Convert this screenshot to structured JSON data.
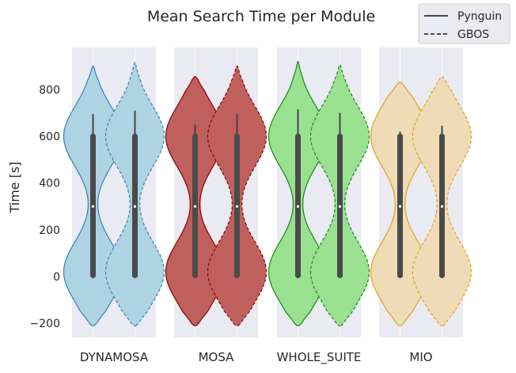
{
  "chart_data": {
    "type": "violin",
    "title": "Mean Search Time per Module",
    "xlabel": "",
    "ylabel": "Time [s]",
    "ylim": [
      -260,
      980
    ],
    "yticks": [
      -200,
      0,
      200,
      400,
      600,
      800
    ],
    "yticklabels": [
      "−200",
      "0",
      "200",
      "400",
      "600",
      "800"
    ],
    "grid": true,
    "legend_position": "top-right",
    "legend": [
      {
        "label": "Pynguin",
        "linestyle": "solid"
      },
      {
        "label": "GBOS",
        "linestyle": "dashed"
      }
    ],
    "panels": [
      {
        "category": "DYNAMOSA",
        "fill": "#aed3e2",
        "edge": "#3a7fb3",
        "violins": [
          {
            "series": "Pynguin",
            "min": -210,
            "max": 900,
            "q1": 5,
            "median": 300,
            "q3": 600,
            "whisker_high": 695
          },
          {
            "series": "GBOS",
            "min": -210,
            "max": 915,
            "q1": 5,
            "median": 300,
            "q3": 600,
            "whisker_high": 710
          }
        ]
      },
      {
        "category": "MOSA",
        "fill": "#c0605d",
        "edge": "#8b0000",
        "violins": [
          {
            "series": "Pynguin",
            "min": -210,
            "max": 855,
            "q1": 5,
            "median": 300,
            "q3": 600,
            "whisker_high": 650
          },
          {
            "series": "GBOS",
            "min": -210,
            "max": 900,
            "q1": 5,
            "median": 300,
            "q3": 600,
            "whisker_high": 695
          }
        ]
      },
      {
        "category": "WHOLE_SUITE",
        "fill": "#99e191",
        "edge": "#118a11",
        "violins": [
          {
            "series": "Pynguin",
            "min": -210,
            "max": 920,
            "q1": 5,
            "median": 300,
            "q3": 600,
            "whisker_high": 715
          },
          {
            "series": "GBOS",
            "min": -210,
            "max": 905,
            "q1": 5,
            "median": 300,
            "q3": 600,
            "whisker_high": 700
          }
        ]
      },
      {
        "category": "MIO",
        "fill": "#efdbb6",
        "edge": "#e0a219",
        "violins": [
          {
            "series": "Pynguin",
            "min": -210,
            "max": 830,
            "q1": 5,
            "median": 300,
            "q3": 600,
            "whisker_high": 620
          },
          {
            "series": "GBOS",
            "min": -210,
            "max": 855,
            "q1": 5,
            "median": 300,
            "q3": 600,
            "whisker_high": 645
          }
        ]
      }
    ]
  }
}
